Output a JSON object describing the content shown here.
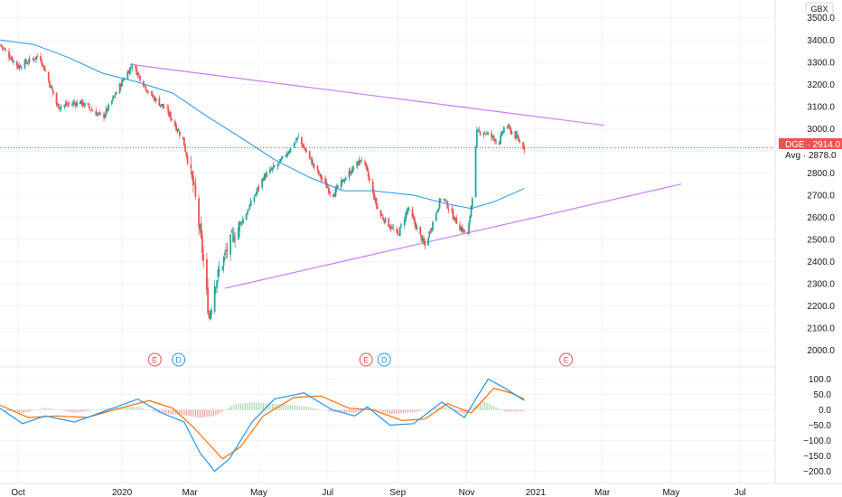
{
  "currency": "GBX",
  "symbol_badge": "DGE · 2914.0",
  "avg_badge": "Avg · 2878.0",
  "colors": {
    "up": "#26a69a",
    "down": "#ef5350",
    "ma": "#2196f3",
    "trend": "#c77dff",
    "macd": "#2196f3",
    "signal": "#ff6d00",
    "earnings": "#ef5350",
    "dividend": "#2196f3"
  },
  "event_markers": [
    {
      "label": "E",
      "date": "2020-01-30"
    },
    {
      "label": "D",
      "date": "2020-02-20"
    },
    {
      "label": "E",
      "date": "2020-08-04"
    },
    {
      "label": "D",
      "date": "2020-08-20"
    },
    {
      "label": "E",
      "date": "2021-01-28"
    }
  ],
  "chart_data": [
    {
      "type": "candlestick",
      "title": "",
      "x_ticks": [
        {
          "label": "Oct",
          "date": "2019-10-01"
        },
        {
          "label": "2020",
          "date": "2020-01-01"
        },
        {
          "label": "Mar",
          "date": "2020-03-01"
        },
        {
          "label": "May",
          "date": "2020-05-01"
        },
        {
          "label": "Jul",
          "date": "2020-07-01"
        },
        {
          "label": "Sep",
          "date": "2020-09-01"
        },
        {
          "label": "Nov",
          "date": "2020-11-01"
        },
        {
          "label": "2021",
          "date": "2021-01-01"
        },
        {
          "label": "Mar",
          "date": "2021-03-01"
        },
        {
          "label": "May",
          "date": "2021-05-01"
        },
        {
          "label": "Jul",
          "date": "2021-07-01"
        }
      ],
      "y_ticks": [
        "3500.0",
        "3400.0",
        "3300.0",
        "3200.0",
        "3100.0",
        "3000.0",
        "2900.0",
        "2800.0",
        "2700.0",
        "2600.0",
        "2500.0",
        "2400.0",
        "2300.0",
        "2200.0",
        "2100.0",
        "2000.0"
      ],
      "ylim": [
        1950,
        3560
      ],
      "xlim": [
        "2019-09-15",
        "2021-08-01"
      ],
      "last_price": 2914.0,
      "avg_price": 2878.0,
      "price_path": [
        {
          "date": "2019-09-15",
          "close": 3380
        },
        {
          "date": "2019-10-01",
          "close": 3280
        },
        {
          "date": "2019-10-20",
          "close": 3330
        },
        {
          "date": "2019-11-05",
          "close": 3100
        },
        {
          "date": "2019-11-25",
          "close": 3120
        },
        {
          "date": "2019-12-15",
          "close": 3050
        },
        {
          "date": "2020-01-03",
          "close": 3230
        },
        {
          "date": "2020-01-10",
          "close": 3290
        },
        {
          "date": "2020-01-25",
          "close": 3160
        },
        {
          "date": "2020-02-10",
          "close": 3080
        },
        {
          "date": "2020-02-24",
          "close": 2950
        },
        {
          "date": "2020-03-05",
          "close": 2720
        },
        {
          "date": "2020-03-12",
          "close": 2450
        },
        {
          "date": "2020-03-18",
          "close": 2150
        },
        {
          "date": "2020-03-23",
          "close": 2300
        },
        {
          "date": "2020-04-05",
          "close": 2480
        },
        {
          "date": "2020-04-20",
          "close": 2620
        },
        {
          "date": "2020-05-05",
          "close": 2780
        },
        {
          "date": "2020-05-20",
          "close": 2850
        },
        {
          "date": "2020-06-05",
          "close": 2960
        },
        {
          "date": "2020-06-20",
          "close": 2820
        },
        {
          "date": "2020-07-05",
          "close": 2700
        },
        {
          "date": "2020-07-20",
          "close": 2800
        },
        {
          "date": "2020-08-01",
          "close": 2870
        },
        {
          "date": "2020-08-15",
          "close": 2620
        },
        {
          "date": "2020-09-01",
          "close": 2520
        },
        {
          "date": "2020-09-10",
          "close": 2640
        },
        {
          "date": "2020-09-25",
          "close": 2470
        },
        {
          "date": "2020-10-10",
          "close": 2700
        },
        {
          "date": "2020-10-25",
          "close": 2560
        },
        {
          "date": "2020-11-02",
          "close": 2520
        },
        {
          "date": "2020-11-06",
          "close": 2700
        },
        {
          "date": "2020-11-10",
          "close": 2980
        },
        {
          "date": "2020-11-15",
          "close": 2990
        },
        {
          "date": "2020-11-30",
          "close": 2940
        },
        {
          "date": "2020-12-05",
          "close": 3020
        },
        {
          "date": "2020-12-15",
          "close": 2960
        },
        {
          "date": "2020-12-22",
          "close": 2914
        }
      ],
      "moving_average": [
        {
          "date": "2019-09-15",
          "value": 3400
        },
        {
          "date": "2019-10-15",
          "value": 3380
        },
        {
          "date": "2019-11-15",
          "value": 3320
        },
        {
          "date": "2019-12-15",
          "value": 3250
        },
        {
          "date": "2020-01-15",
          "value": 3210
        },
        {
          "date": "2020-02-15",
          "value": 3160
        },
        {
          "date": "2020-03-15",
          "value": 3060
        },
        {
          "date": "2020-04-15",
          "value": 2960
        },
        {
          "date": "2020-05-15",
          "value": 2860
        },
        {
          "date": "2020-06-15",
          "value": 2780
        },
        {
          "date": "2020-07-15",
          "value": 2720
        },
        {
          "date": "2020-08-10",
          "value": 2720
        },
        {
          "date": "2020-09-15",
          "value": 2700
        },
        {
          "date": "2020-10-15",
          "value": 2660
        },
        {
          "date": "2020-11-05",
          "value": 2640
        },
        {
          "date": "2020-11-25",
          "value": 2670
        },
        {
          "date": "2020-12-22",
          "value": 2730
        }
      ],
      "trendlines": [
        {
          "from": {
            "date": "2020-01-08",
            "value": 3290
          },
          "to": {
            "date": "2021-03-03",
            "value": 3015
          }
        },
        {
          "from": {
            "date": "2020-04-01",
            "value": 2280
          },
          "to": {
            "date": "2021-05-10",
            "value": 2750
          }
        }
      ]
    },
    {
      "type": "line",
      "title": "",
      "y_ticks": [
        "100.0",
        "50.0",
        "0.0",
        "−50.0",
        "−100.0",
        "−150.0",
        "−200.0"
      ],
      "ylim": [
        -225,
        125
      ],
      "series": [
        {
          "role": "macd",
          "points": [
            {
              "date": "2019-09-15",
              "value": 5
            },
            {
              "date": "2019-10-05",
              "value": -45
            },
            {
              "date": "2019-10-25",
              "value": -20
            },
            {
              "date": "2019-11-20",
              "value": -40
            },
            {
              "date": "2019-12-20",
              "value": 0
            },
            {
              "date": "2020-01-15",
              "value": 35
            },
            {
              "date": "2020-02-05",
              "value": -10
            },
            {
              "date": "2020-02-25",
              "value": -40
            },
            {
              "date": "2020-03-10",
              "value": -140
            },
            {
              "date": "2020-03-23",
              "value": -200
            },
            {
              "date": "2020-04-05",
              "value": -160
            },
            {
              "date": "2020-04-25",
              "value": -40
            },
            {
              "date": "2020-05-15",
              "value": 35
            },
            {
              "date": "2020-06-10",
              "value": 55
            },
            {
              "date": "2020-07-05",
              "value": 0
            },
            {
              "date": "2020-07-25",
              "value": -20
            },
            {
              "date": "2020-08-05",
              "value": 10
            },
            {
              "date": "2020-08-25",
              "value": -50
            },
            {
              "date": "2020-09-15",
              "value": -45
            },
            {
              "date": "2020-10-10",
              "value": 25
            },
            {
              "date": "2020-10-30",
              "value": -25
            },
            {
              "date": "2020-11-20",
              "value": 100
            },
            {
              "date": "2020-12-05",
              "value": 70
            },
            {
              "date": "2020-12-22",
              "value": 30
            }
          ]
        },
        {
          "role": "signal",
          "points": [
            {
              "date": "2019-09-15",
              "value": 15
            },
            {
              "date": "2019-10-10",
              "value": -25
            },
            {
              "date": "2019-11-05",
              "value": -20
            },
            {
              "date": "2019-12-01",
              "value": -25
            },
            {
              "date": "2019-12-30",
              "value": 5
            },
            {
              "date": "2020-01-25",
              "value": 30
            },
            {
              "date": "2020-02-15",
              "value": 5
            },
            {
              "date": "2020-03-05",
              "value": -60
            },
            {
              "date": "2020-03-30",
              "value": -160
            },
            {
              "date": "2020-04-15",
              "value": -120
            },
            {
              "date": "2020-05-05",
              "value": -20
            },
            {
              "date": "2020-06-01",
              "value": 40
            },
            {
              "date": "2020-06-25",
              "value": 45
            },
            {
              "date": "2020-07-20",
              "value": 5
            },
            {
              "date": "2020-08-10",
              "value": 0
            },
            {
              "date": "2020-09-05",
              "value": -35
            },
            {
              "date": "2020-09-25",
              "value": -30
            },
            {
              "date": "2020-10-15",
              "value": 20
            },
            {
              "date": "2020-11-05",
              "value": -10
            },
            {
              "date": "2020-11-25",
              "value": 70
            },
            {
              "date": "2020-12-10",
              "value": 55
            },
            {
              "date": "2020-12-22",
              "value": 35
            }
          ]
        }
      ],
      "histogram": [
        {
          "date": "2019-10-01",
          "value": -15
        },
        {
          "date": "2019-10-25",
          "value": 8
        },
        {
          "date": "2019-11-20",
          "value": -10
        },
        {
          "date": "2019-12-20",
          "value": 6
        },
        {
          "date": "2020-01-15",
          "value": 10
        },
        {
          "date": "2020-02-05",
          "value": -12
        },
        {
          "date": "2020-02-25",
          "value": -18
        },
        {
          "date": "2020-03-10",
          "value": -25
        },
        {
          "date": "2020-03-23",
          "value": -20
        },
        {
          "date": "2020-04-10",
          "value": 18
        },
        {
          "date": "2020-04-25",
          "value": 25
        },
        {
          "date": "2020-05-15",
          "value": 20
        },
        {
          "date": "2020-06-10",
          "value": 12
        },
        {
          "date": "2020-07-05",
          "value": -6
        },
        {
          "date": "2020-07-25",
          "value": -10
        },
        {
          "date": "2020-08-05",
          "value": 8
        },
        {
          "date": "2020-08-25",
          "value": -14
        },
        {
          "date": "2020-09-15",
          "value": -8
        },
        {
          "date": "2020-10-10",
          "value": 10
        },
        {
          "date": "2020-10-30",
          "value": -12
        },
        {
          "date": "2020-11-15",
          "value": 30
        },
        {
          "date": "2020-12-05",
          "value": -6
        },
        {
          "date": "2020-12-22",
          "value": -5
        }
      ]
    }
  ]
}
